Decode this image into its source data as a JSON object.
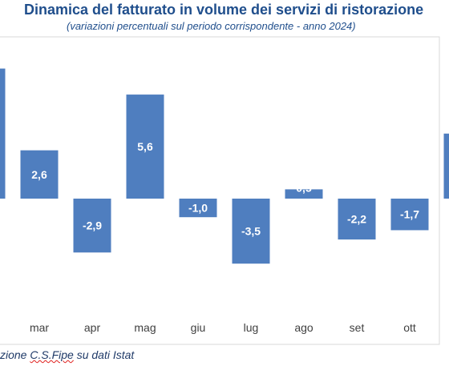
{
  "chart_data": {
    "type": "bar",
    "title": "Dinamica del fatturato in volume dei servizi di ristorazione",
    "subtitle": "(variazioni percentuali sul periodo corrispondente - anno 2024)",
    "categories": [
      "",
      "mar",
      "apr",
      "mag",
      "giu",
      "lug",
      "ago",
      "set",
      "ott",
      ""
    ],
    "values": [
      7.0,
      2.6,
      -2.9,
      5.6,
      -1.0,
      -3.5,
      0.5,
      -2.2,
      -1.7,
      3.5
    ],
    "value_labels": [
      "",
      "2,6",
      "-2,9",
      "5,6",
      "-1,0",
      "-3,5",
      "0,5",
      "-2,2",
      "-1,7",
      ""
    ],
    "ylim": [
      -8.0,
      7.0
    ],
    "grid": false,
    "bar_color": "#4f7ebf"
  },
  "footer": {
    "source_prefix": "zione ",
    "source_misspelled": "C.S.Fipe",
    "source_suffix": " su dati Istat"
  }
}
